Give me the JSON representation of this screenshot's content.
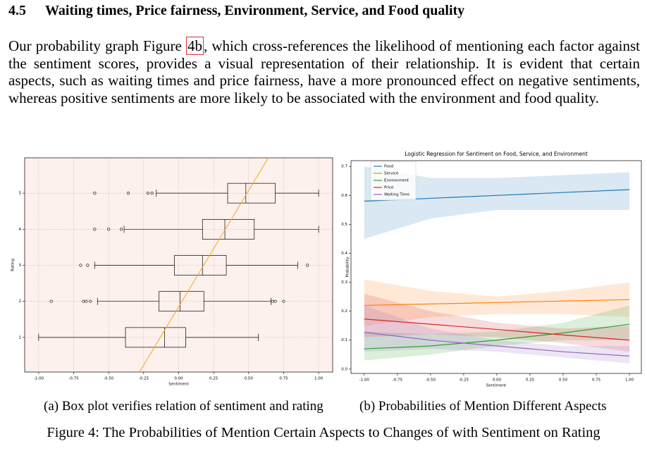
{
  "section": {
    "number": "4.5",
    "title": "Waiting times, Price fairness, Environment, Service, and Food quality"
  },
  "paragraph": {
    "before": "Our probability graph Figure",
    "ref": "4b",
    "after": ", which cross-references the likelihood of mentioning each factor against the sentiment scores, provides a visual representation of their relationship. It is evident that certain aspects, such as waiting times and price fairness, have a more pronounced effect on negative sentiments, whereas positive sentiments are more likely to be associated with the environment and food quality."
  },
  "captions": {
    "a": "(a) Box plot verifies relation of sentiment and rating",
    "b": "(b) Probabilities of Mention Different Aspects",
    "figure": "Figure 4: The Probabilities of Mention Certain Aspects to Changes of with Sentiment on Rating"
  },
  "chart_data": [
    {
      "type": "box",
      "x_label": "Sentiment",
      "y_label": "Rating",
      "grid": true,
      "background": "#fdf1ed",
      "xlim": [
        -1.1,
        1.1
      ],
      "xticks": [
        {
          "value": -1,
          "label": "-1.00"
        },
        -0.75,
        {
          "value": -0.5,
          "label": "-0.50"
        },
        -0.25,
        {
          "value": 0,
          "label": "0.00"
        },
        0.25,
        {
          "value": 0.5,
          "label": "0.50"
        },
        0.75,
        {
          "value": 1,
          "label": "1.00"
        }
      ],
      "ylim": [
        0.04,
        5.98
      ],
      "yticks": [
        1,
        2,
        3,
        4,
        5
      ],
      "boxes": [
        {
          "rating": 1,
          "whislo": -1.0,
          "q1": -0.38,
          "med": -0.1,
          "q3": 0.05,
          "whishi": 0.57,
          "fliers": []
        },
        {
          "rating": 2,
          "whislo": -0.58,
          "q1": -0.14,
          "med": 0.01,
          "q3": 0.18,
          "whishi": 0.66,
          "fliers": [
            -0.91,
            -0.68,
            -0.66,
            -0.63,
            0.67,
            0.69,
            0.75
          ]
        },
        {
          "rating": 3,
          "whislo": -0.6,
          "q1": -0.03,
          "med": 0.17,
          "q3": 0.34,
          "whishi": 0.85,
          "fliers": [
            -0.7,
            -0.65,
            0.92
          ]
        },
        {
          "rating": 4,
          "whislo": -0.39,
          "q1": 0.17,
          "med": 0.33,
          "q3": 0.54,
          "whishi": 1.0,
          "fliers": [
            -0.6,
            -0.5,
            -0.41
          ]
        },
        {
          "rating": 5,
          "whislo": -0.16,
          "q1": 0.35,
          "med": 0.48,
          "q3": 0.69,
          "whishi": 1.0,
          "fliers": [
            -0.6,
            -0.36,
            -0.22,
            -0.19
          ]
        }
      ],
      "fit": {
        "color": "#f5a623",
        "x": [
          -0.28,
          0.64
        ],
        "y": [
          0.04,
          5.98
        ]
      }
    },
    {
      "type": "line",
      "title": "Logistic Regression for Sentiment on Food, Service, and Environment",
      "x_label": "Sentiment",
      "y_label": "Probability",
      "legend": "upper left",
      "xlim": [
        -1.1,
        1.09
      ],
      "xticks": [
        {
          "value": -1,
          "label": "-1.00"
        },
        -0.75,
        {
          "value": -0.5,
          "label": "-0.50"
        },
        -0.25,
        {
          "value": 0,
          "label": "0.00"
        },
        0.25,
        {
          "value": 0.5,
          "label": "0.50"
        },
        0.75,
        {
          "value": 1,
          "label": "1.00"
        }
      ],
      "ylim": [
        -0.015,
        0.72
      ],
      "yticks": [
        {
          "value": 0,
          "label": "0.0"
        },
        0.1,
        0.2,
        0.3,
        0.4,
        0.5,
        0.6,
        0.7
      ],
      "x": [
        -1,
        -0.5,
        0,
        0.5,
        1
      ],
      "series": [
        {
          "name": "Food",
          "color": "#1f77b4",
          "values": [
            0.58,
            0.59,
            0.6,
            0.61,
            0.62
          ],
          "lower": [
            0.45,
            0.52,
            0.55,
            0.55,
            0.55
          ],
          "upper": [
            0.7,
            0.66,
            0.66,
            0.67,
            0.68
          ]
        },
        {
          "name": "Service",
          "color": "#ff7f0e",
          "values": [
            0.22,
            0.225,
            0.23,
            0.235,
            0.24
          ],
          "lower": [
            0.15,
            0.18,
            0.19,
            0.19,
            0.18
          ],
          "upper": [
            0.31,
            0.27,
            0.25,
            0.27,
            0.3
          ]
        },
        {
          "name": "Environment",
          "color": "#2ca02c",
          "values": [
            0.07,
            0.08,
            0.1,
            0.125,
            0.155
          ],
          "lower": [
            0.03,
            0.05,
            0.08,
            0.1,
            0.1
          ],
          "upper": [
            0.13,
            0.12,
            0.13,
            0.16,
            0.22
          ]
        },
        {
          "name": "Price",
          "color": "#d62728",
          "values": [
            0.173,
            0.155,
            0.137,
            0.118,
            0.1
          ],
          "lower": [
            0.11,
            0.12,
            0.11,
            0.09,
            0.06
          ],
          "upper": [
            0.26,
            0.2,
            0.16,
            0.14,
            0.15
          ]
        },
        {
          "name": "Waiting Time",
          "color": "#9467bd",
          "values": [
            0.127,
            0.1,
            0.08,
            0.06,
            0.045
          ],
          "lower": [
            0.06,
            0.07,
            0.06,
            0.04,
            0.02
          ],
          "upper": [
            0.22,
            0.14,
            0.1,
            0.08,
            0.08
          ]
        }
      ]
    }
  ]
}
